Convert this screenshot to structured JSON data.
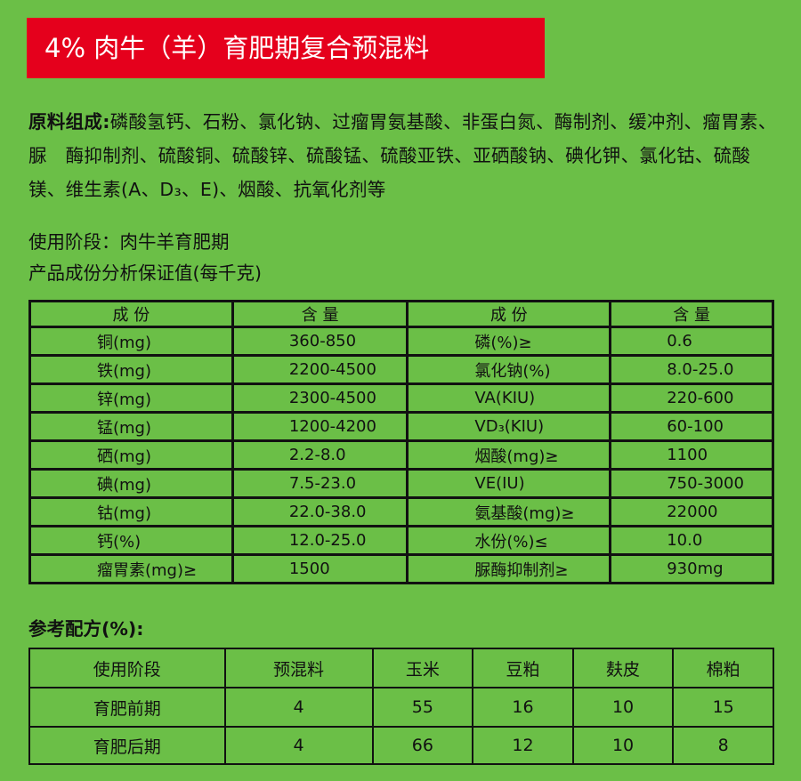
{
  "title": "4% 肉牛（羊）育肥期复合预混料",
  "ingredients": {
    "label": "原料组成:",
    "text": "磷酸氢钙、石粉、氯化钠、过瘤胃氨基酸、非蛋白氮、酶制剂、缓冲剂、瘤胃素、脲　酶抑制剂、硫酸铜、硫酸锌、硫酸锰、硫酸亚铁、亚硒酸钠、碘化钾、氯化钴、硫酸镁、维生素(A、D₃、E)、烟酸、抗氧化剂等"
  },
  "stage": "使用阶段：肉牛羊育肥期",
  "analysis_title": "产品成份分析保证值(每千克)",
  "analysis_table": {
    "headers": [
      "成 份",
      "含 量",
      "成 份",
      "含 量"
    ],
    "rows": [
      [
        "铜(mg)",
        "360-850",
        "磷(%)≥",
        "0.6"
      ],
      [
        "铁(mg)",
        "2200-4500",
        "氯化钠(%)",
        "8.0-25.0"
      ],
      [
        "锌(mg)",
        "2300-4500",
        "VA(KIU)",
        "220-600"
      ],
      [
        "锰(mg)",
        "1200-4200",
        "VD₃(KIU)",
        "60-100"
      ],
      [
        "硒(mg)",
        "2.2-8.0",
        "烟酸(mg)≥",
        "1100"
      ],
      [
        "碘(mg)",
        "7.5-23.0",
        "VE(IU)",
        "750-3000"
      ],
      [
        "钴(mg)",
        "22.0-38.0",
        "氨基酸(mg)≥",
        "22000"
      ],
      [
        "钙(%)",
        "12.0-25.0",
        "水份(%)≤",
        "10.0"
      ],
      [
        "瘤胃素(mg)≥",
        "1500",
        "脲酶抑制剂≥",
        "930mg"
      ]
    ]
  },
  "formula_title": "参考配方(%):",
  "formula_table": {
    "headers": [
      "使用阶段",
      "预混料",
      "玉米",
      "豆粕",
      "麸皮",
      "棉粕"
    ],
    "rows": [
      [
        "育肥前期",
        "4",
        "55",
        "16",
        "10",
        "15"
      ],
      [
        "育肥后期",
        "4",
        "66",
        "12",
        "10",
        "8"
      ]
    ]
  }
}
